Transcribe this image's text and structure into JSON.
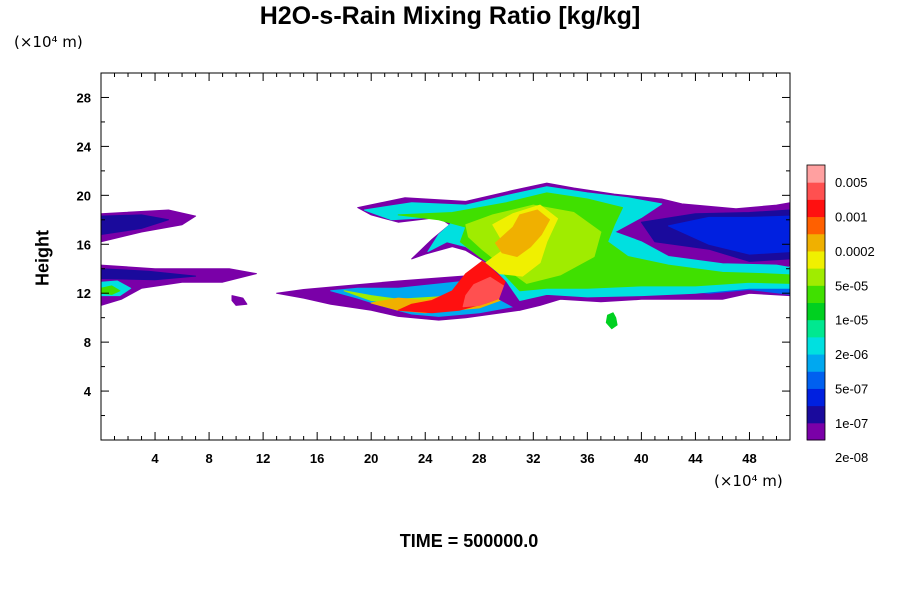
{
  "title": "H2O-s-Rain Mixing Ratio [kg/kg]",
  "y_unit": "(×10⁴ m)",
  "x_unit": "(×10⁴ m)",
  "y_label": "Height",
  "time_label": "TIME = 500000.0",
  "chart_data": {
    "type": "heatmap",
    "title": "H2O-s-Rain Mixing Ratio [kg/kg]",
    "ylabel": "Height",
    "xlim": [
      0,
      51
    ],
    "ylim": [
      0,
      30
    ],
    "x_ticks": [
      4,
      8,
      12,
      16,
      20,
      24,
      28,
      32,
      36,
      40,
      44,
      48
    ],
    "y_ticks": [
      4,
      8,
      12,
      16,
      20,
      24,
      28
    ],
    "colorbar": {
      "labels": [
        "0.005",
        "0.001",
        "0.0002",
        "5e-05",
        "1e-05",
        "2e-06",
        "5e-07",
        "1e-07",
        "2e-08"
      ],
      "colors": [
        "#7a00a8",
        "#1a0a9c",
        "#0020e0",
        "#0060f0",
        "#00a8f0",
        "#00e0e0",
        "#00e890",
        "#00d020",
        "#40e000",
        "#a0ec00",
        "#f0f000",
        "#f0b000",
        "#ff6000",
        "#ff1010",
        "#ff5050",
        "#ffa0a0"
      ]
    },
    "regions": [
      {
        "level": 0,
        "poly": [
          [
            0,
            18.5
          ],
          [
            5,
            18.8
          ],
          [
            7,
            18.3
          ],
          [
            6,
            17.6
          ],
          [
            3,
            17.0
          ],
          [
            0,
            16.2
          ]
        ]
      },
      {
        "level": 1,
        "poly": [
          [
            0,
            18.3
          ],
          [
            3,
            18.4
          ],
          [
            5,
            18.0
          ],
          [
            3,
            17.3
          ],
          [
            0,
            16.8
          ]
        ]
      },
      {
        "level": 0,
        "poly": [
          [
            0,
            14.3
          ],
          [
            4,
            14.0
          ],
          [
            9.5,
            14.0
          ],
          [
            11.5,
            13.6
          ],
          [
            9,
            12.9
          ],
          [
            6,
            12.9
          ],
          [
            3,
            12.4
          ],
          [
            1.5,
            11.5
          ],
          [
            0,
            11.0
          ]
        ]
      },
      {
        "level": 1,
        "poly": [
          [
            0,
            14.0
          ],
          [
            3.5,
            13.8
          ],
          [
            7,
            13.4
          ],
          [
            4,
            13.1
          ],
          [
            0,
            13.2
          ]
        ]
      },
      {
        "level": 5,
        "poly": [
          [
            0,
            12.9
          ],
          [
            1.2,
            13.0
          ],
          [
            2.2,
            12.4
          ],
          [
            1.4,
            11.8
          ],
          [
            0,
            11.8
          ]
        ]
      },
      {
        "level": 8,
        "poly": [
          [
            0,
            12.4
          ],
          [
            0.8,
            12.6
          ],
          [
            1.4,
            12.2
          ],
          [
            0.8,
            11.9
          ],
          [
            0,
            12.0
          ]
        ]
      },
      {
        "level": 0,
        "poly": [
          [
            9.7,
            11.8
          ],
          [
            10.5,
            11.6
          ],
          [
            10.8,
            11.1
          ],
          [
            10.0,
            11.0
          ],
          [
            9.7,
            11.4
          ]
        ]
      },
      {
        "level": 0,
        "poly": [
          [
            13,
            12.0
          ],
          [
            15,
            11.6
          ],
          [
            17,
            11.1
          ],
          [
            20,
            10.6
          ],
          [
            22,
            10.1
          ],
          [
            25,
            9.8
          ],
          [
            27,
            10.0
          ],
          [
            31,
            10.6
          ],
          [
            33,
            11.5
          ],
          [
            32.5,
            13
          ],
          [
            28,
            13.5
          ],
          [
            22,
            13.0
          ],
          [
            18,
            12.6
          ],
          [
            15,
            12.3
          ]
        ]
      },
      {
        "level": 4,
        "poly": [
          [
            17,
            12.2
          ],
          [
            19,
            11.6
          ],
          [
            21,
            10.9
          ],
          [
            23,
            10.3
          ],
          [
            25,
            10.1
          ],
          [
            28,
            10.4
          ],
          [
            31,
            11.0
          ],
          [
            32,
            12.2
          ],
          [
            28,
            13.1
          ],
          [
            22,
            12.4
          ],
          [
            19,
            12.4
          ]
        ]
      },
      {
        "level": 9,
        "poly": [
          [
            18,
            12.2
          ],
          [
            20,
            11.8
          ],
          [
            22,
            11.5
          ],
          [
            25,
            11.7
          ],
          [
            24,
            11.2
          ],
          [
            22,
            11.2
          ],
          [
            20,
            11.4
          ]
        ]
      },
      {
        "level": 11,
        "poly": [
          [
            20,
            11.2
          ],
          [
            22,
            10.6
          ],
          [
            24,
            10.4
          ],
          [
            26,
            10.6
          ],
          [
            28,
            10.8
          ],
          [
            30,
            11.6
          ],
          [
            31,
            12.5
          ],
          [
            28,
            13.2
          ],
          [
            26,
            12.0
          ],
          [
            24,
            11.4
          ],
          [
            22,
            11.6
          ]
        ]
      },
      {
        "level": 13,
        "poly": [
          [
            22,
            10.6
          ],
          [
            24.5,
            10.4
          ],
          [
            26.5,
            10.6
          ],
          [
            28.5,
            11.2
          ],
          [
            30,
            11.8
          ],
          [
            30.5,
            12.8
          ],
          [
            29.5,
            13.8
          ],
          [
            28.2,
            14.6
          ],
          [
            27,
            13.6
          ],
          [
            26,
            12.2
          ],
          [
            24.5,
            11.4
          ],
          [
            23,
            11.1
          ]
        ]
      },
      {
        "level": 14,
        "poly": [
          [
            26.8,
            10.9
          ],
          [
            28,
            11.0
          ],
          [
            29.5,
            11.6
          ],
          [
            29.8,
            12.6
          ],
          [
            28.8,
            13.3
          ],
          [
            27.6,
            12.7
          ],
          [
            27.0,
            11.8
          ]
        ]
      },
      {
        "level": 0,
        "poly": [
          [
            19,
            19.0
          ],
          [
            22.5,
            19.8
          ],
          [
            27,
            19.5
          ],
          [
            30.5,
            20.4
          ],
          [
            33,
            21.0
          ],
          [
            35,
            20.6
          ],
          [
            38,
            20.1
          ],
          [
            41.5,
            19.7
          ],
          [
            43,
            19.3
          ],
          [
            47,
            18.9
          ],
          [
            50,
            19.2
          ],
          [
            51,
            19.4
          ],
          [
            51,
            14.3
          ],
          [
            50.5,
            13.8
          ],
          [
            51,
            13.2
          ],
          [
            51,
            11.8
          ],
          [
            48,
            12.0
          ],
          [
            46,
            11.5
          ],
          [
            42,
            11.5
          ],
          [
            40,
            11.5
          ],
          [
            37,
            11.3
          ],
          [
            34,
            11.5
          ],
          [
            32.5,
            11.0
          ],
          [
            31,
            10.6
          ],
          [
            29.5,
            11.5
          ],
          [
            30,
            13.0
          ],
          [
            28.5,
            14.5
          ],
          [
            27,
            15.5
          ],
          [
            26,
            15.8
          ],
          [
            24,
            15.2
          ],
          [
            23,
            14.8
          ],
          [
            24.5,
            16.4
          ],
          [
            25.8,
            17.6
          ],
          [
            25,
            18.2
          ],
          [
            22,
            17.8
          ],
          [
            20,
            18.4
          ]
        ]
      },
      {
        "level": 1,
        "poly": [
          [
            40,
            17.8
          ],
          [
            44,
            18.5
          ],
          [
            48,
            18.6
          ],
          [
            51,
            18.8
          ],
          [
            51,
            14.8
          ],
          [
            48,
            14.6
          ],
          [
            45,
            15.6
          ],
          [
            41,
            16.2
          ]
        ]
      },
      {
        "level": 2,
        "poly": [
          [
            42,
            17.5
          ],
          [
            45,
            18.2
          ],
          [
            48,
            18.2
          ],
          [
            51,
            18.3
          ],
          [
            51,
            15.4
          ],
          [
            48,
            15.2
          ],
          [
            45,
            16.0
          ]
        ]
      },
      {
        "level": 3,
        "poly": [
          [
            38,
            14.8
          ],
          [
            42,
            14.6
          ],
          [
            46,
            14.2
          ],
          [
            49,
            13.8
          ],
          [
            51,
            13.7
          ],
          [
            51,
            11.9
          ],
          [
            48,
            12.3
          ],
          [
            45,
            12.0
          ],
          [
            41,
            12.4
          ],
          [
            38,
            12.8
          ]
        ]
      },
      {
        "level": 5,
        "poly": [
          [
            19.5,
            18.8
          ],
          [
            23,
            19.4
          ],
          [
            27,
            19.2
          ],
          [
            30.5,
            20.1
          ],
          [
            33,
            20.7
          ],
          [
            36,
            20.2
          ],
          [
            39,
            19.8
          ],
          [
            41.5,
            19.3
          ],
          [
            40,
            18.2
          ],
          [
            38,
            17.0
          ],
          [
            40,
            16.2
          ],
          [
            42,
            15.0
          ],
          [
            46,
            14.4
          ],
          [
            50,
            14.3
          ],
          [
            51,
            14.1
          ],
          [
            51,
            12.4
          ],
          [
            48,
            12.4
          ],
          [
            44,
            12.0
          ],
          [
            40,
            11.8
          ],
          [
            36,
            11.7
          ],
          [
            33,
            11.9
          ],
          [
            31,
            11.4
          ],
          [
            30,
            13.0
          ],
          [
            28.5,
            14.7
          ],
          [
            27,
            15.8
          ],
          [
            25.6,
            16.2
          ],
          [
            24.2,
            15.4
          ],
          [
            25,
            16.8
          ],
          [
            26,
            17.8
          ],
          [
            24.5,
            18.2
          ],
          [
            21.5,
            18.0
          ]
        ]
      },
      {
        "level": 8,
        "poly": [
          [
            22,
            18.4
          ],
          [
            26,
            18.6
          ],
          [
            30,
            19.4
          ],
          [
            33,
            20.2
          ],
          [
            36,
            19.7
          ],
          [
            38.6,
            19.0
          ],
          [
            38,
            17.6
          ],
          [
            37.5,
            16.2
          ],
          [
            39,
            15.0
          ],
          [
            42,
            14.3
          ],
          [
            46,
            13.7
          ],
          [
            49,
            13.6
          ],
          [
            51,
            13.5
          ],
          [
            51,
            12.8
          ],
          [
            48,
            12.9
          ],
          [
            44,
            12.6
          ],
          [
            40,
            12.6
          ],
          [
            36,
            12.4
          ],
          [
            33,
            12.4
          ],
          [
            31,
            12.2
          ],
          [
            29.8,
            13.6
          ],
          [
            28,
            15.0
          ],
          [
            26.6,
            16.2
          ],
          [
            27,
            17.4
          ],
          [
            25,
            18.0
          ]
        ]
      },
      {
        "level": 9,
        "poly": [
          [
            27,
            17.6
          ],
          [
            29,
            18.4
          ],
          [
            32,
            19.2
          ],
          [
            35,
            18.6
          ],
          [
            37,
            17.0
          ],
          [
            36.5,
            15.0
          ],
          [
            34,
            13.5
          ],
          [
            31.5,
            12.8
          ],
          [
            30,
            14.0
          ],
          [
            28.2,
            15.6
          ],
          [
            27.2,
            16.6
          ]
        ]
      },
      {
        "level": 10,
        "poly": [
          [
            28.5,
            14.5
          ],
          [
            30,
            15.7
          ],
          [
            29,
            17.6
          ],
          [
            30.5,
            18.5
          ],
          [
            32.5,
            19.2
          ],
          [
            33.8,
            18.1
          ],
          [
            33,
            16.2
          ],
          [
            32.5,
            14.5
          ],
          [
            31.2,
            13.4
          ],
          [
            29.5,
            13.6
          ]
        ]
      },
      {
        "level": 11,
        "poly": [
          [
            29.2,
            16.1
          ],
          [
            30.5,
            17.4
          ],
          [
            31,
            18.4
          ],
          [
            32.3,
            18.8
          ],
          [
            33.2,
            18.0
          ],
          [
            32.6,
            16.8
          ],
          [
            31.8,
            15.8
          ],
          [
            30.8,
            15.0
          ],
          [
            29.7,
            15.3
          ]
        ]
      },
      {
        "level": 7,
        "poly": [
          [
            37.5,
            10.2
          ],
          [
            37.9,
            10.4
          ],
          [
            38.1,
            10.0
          ],
          [
            38.2,
            9.4
          ],
          [
            37.8,
            9.1
          ],
          [
            37.4,
            9.6
          ]
        ]
      }
    ]
  }
}
